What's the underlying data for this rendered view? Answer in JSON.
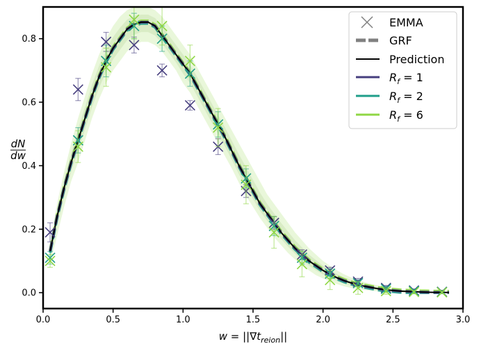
{
  "chart_data": {
    "type": "line",
    "xlabel_main": "w = ||",
    "xlabel_nabla": "∇",
    "xlabel_t": "t",
    "xlabel_sub": "reion",
    "xlabel_end": "||",
    "ylabel_num": "dN",
    "ylabel_den": "dw",
    "xlim": [
      0.0,
      3.0
    ],
    "ylim": [
      -0.05,
      0.9
    ],
    "xticks": [
      "0.0",
      "0.5",
      "1.0",
      "1.5",
      "2.0",
      "2.5",
      "3.0"
    ],
    "xtick_values": [
      0.0,
      0.5,
      1.0,
      1.5,
      2.0,
      2.5,
      3.0
    ],
    "yticks": [
      "0.0",
      "0.2",
      "0.4",
      "0.6",
      "0.8"
    ],
    "ytick_values": [
      0.0,
      0.2,
      0.4,
      0.6,
      0.8
    ],
    "legend": {
      "placement": "top-right",
      "entries": [
        {
          "label": "EMMA",
          "kind": "marker",
          "color": "#808080"
        },
        {
          "label": "GRF",
          "kind": "dashed",
          "color": "#808080"
        },
        {
          "label": "Prediction",
          "kind": "line",
          "color": "#000000"
        },
        {
          "label_base": "R",
          "label_sub": "f",
          "label_eq": " = 1",
          "kind": "line",
          "color": "#463e7e"
        },
        {
          "label_base": "R",
          "label_sub": "f",
          "label_eq": " = 2",
          "kind": "line",
          "color": "#1f9e89"
        },
        {
          "label_base": "R",
          "label_sub": "f",
          "label_eq": " = 6",
          "kind": "line",
          "color": "#8fd744"
        }
      ]
    },
    "prediction": {
      "color": "#000000",
      "x": [
        0.05,
        0.1,
        0.15,
        0.2,
        0.25,
        0.3,
        0.35,
        0.4,
        0.45,
        0.5,
        0.55,
        0.6,
        0.65,
        0.7,
        0.75,
        0.8,
        0.85,
        0.9,
        0.95,
        1.0,
        1.05,
        1.1,
        1.15,
        1.2,
        1.25,
        1.3,
        1.35,
        1.4,
        1.45,
        1.5,
        1.55,
        1.6,
        1.65,
        1.7,
        1.75,
        1.8,
        1.85,
        1.9,
        1.95,
        2.0,
        2.05,
        2.1,
        2.15,
        2.2,
        2.25,
        2.3,
        2.35,
        2.4,
        2.45,
        2.5,
        2.55,
        2.6,
        2.65,
        2.7,
        2.75,
        2.8,
        2.85,
        2.9
      ],
      "y": [
        0.13,
        0.24,
        0.33,
        0.41,
        0.48,
        0.55,
        0.62,
        0.68,
        0.73,
        0.77,
        0.8,
        0.83,
        0.845,
        0.852,
        0.852,
        0.84,
        0.81,
        0.78,
        0.75,
        0.72,
        0.69,
        0.65,
        0.61,
        0.57,
        0.53,
        0.49,
        0.445,
        0.4,
        0.36,
        0.32,
        0.28,
        0.25,
        0.22,
        0.19,
        0.165,
        0.14,
        0.12,
        0.1,
        0.085,
        0.07,
        0.058,
        0.047,
        0.038,
        0.031,
        0.025,
        0.02,
        0.016,
        0.012,
        0.009,
        0.007,
        0.005,
        0.004,
        0.003,
        0.002,
        0.0015,
        0.001,
        0.0008,
        0.0005
      ]
    },
    "grf_band": {
      "color": "#8fd744",
      "x": [
        0.05,
        0.1,
        0.15,
        0.2,
        0.25,
        0.3,
        0.35,
        0.4,
        0.45,
        0.5,
        0.55,
        0.6,
        0.65,
        0.7,
        0.75,
        0.8,
        0.85,
        0.9,
        0.95,
        1.0,
        1.05,
        1.1,
        1.15,
        1.2,
        1.25,
        1.3,
        1.35,
        1.4,
        1.45,
        1.5,
        1.55,
        1.6,
        1.65,
        1.7,
        1.75,
        1.8,
        1.85,
        1.9,
        1.95,
        2.0,
        2.05,
        2.1,
        2.15,
        2.2,
        2.25,
        2.3,
        2.35,
        2.4,
        2.45,
        2.5,
        2.55,
        2.6,
        2.65,
        2.7,
        2.75,
        2.8,
        2.85,
        2.9
      ],
      "upper": [
        0.16,
        0.28,
        0.38,
        0.47,
        0.55,
        0.62,
        0.69,
        0.75,
        0.8,
        0.84,
        0.87,
        0.89,
        0.9,
        0.9,
        0.9,
        0.89,
        0.87,
        0.84,
        0.81,
        0.78,
        0.75,
        0.71,
        0.67,
        0.63,
        0.59,
        0.55,
        0.51,
        0.47,
        0.43,
        0.39,
        0.35,
        0.31,
        0.28,
        0.25,
        0.22,
        0.19,
        0.165,
        0.14,
        0.12,
        0.1,
        0.085,
        0.07,
        0.058,
        0.048,
        0.04,
        0.033,
        0.027,
        0.022,
        0.018,
        0.014,
        0.011,
        0.009,
        0.007,
        0.005,
        0.004,
        0.003,
        0.002,
        0.0015
      ],
      "lower": [
        0.09,
        0.18,
        0.27,
        0.35,
        0.41,
        0.48,
        0.55,
        0.61,
        0.66,
        0.7,
        0.73,
        0.76,
        0.78,
        0.79,
        0.79,
        0.78,
        0.76,
        0.73,
        0.7,
        0.66,
        0.63,
        0.59,
        0.55,
        0.51,
        0.47,
        0.43,
        0.39,
        0.345,
        0.305,
        0.27,
        0.235,
        0.205,
        0.175,
        0.15,
        0.125,
        0.105,
        0.085,
        0.07,
        0.055,
        0.045,
        0.035,
        0.027,
        0.02,
        0.015,
        0.011,
        0.008,
        0.006,
        0.004,
        0.003,
        0.002,
        0.0015,
        0.001,
        0.0008,
        0.0005,
        0.0003,
        0.0002,
        0.0001,
        0.0
      ]
    },
    "series": [
      {
        "label": "R_f = 1",
        "color": "#463e7e",
        "x": [
          0.05,
          0.25,
          0.45,
          0.65,
          0.85,
          1.05,
          1.25,
          1.45,
          1.65,
          1.85,
          2.05,
          2.25,
          2.45,
          2.65,
          2.85
        ],
        "y": [
          0.19,
          0.64,
          0.79,
          0.78,
          0.7,
          0.59,
          0.46,
          0.32,
          0.22,
          0.12,
          0.07,
          0.035,
          0.015,
          0.007,
          0.003
        ],
        "err": [
          0.03,
          0.035,
          0.03,
          0.025,
          0.02,
          0.015,
          0.025,
          0.02,
          0.02,
          0.015,
          0.01,
          0.01,
          0.008,
          0.005,
          0.004
        ]
      },
      {
        "label": "R_f = 2",
        "color": "#1f9e89",
        "x": [
          0.05,
          0.25,
          0.45,
          0.65,
          0.85,
          1.05,
          1.25,
          1.45,
          1.65,
          1.85,
          2.05,
          2.25,
          2.45,
          2.65,
          2.85
        ],
        "y": [
          0.11,
          0.48,
          0.73,
          0.84,
          0.8,
          0.69,
          0.53,
          0.36,
          0.21,
          0.11,
          0.06,
          0.03,
          0.012,
          0.005,
          0.002
        ],
        "err": [
          0.02,
          0.04,
          0.05,
          0.04,
          0.04,
          0.04,
          0.04,
          0.03,
          0.03,
          0.02,
          0.015,
          0.01,
          0.008,
          0.005,
          0.003
        ]
      },
      {
        "label": "R_f = 6",
        "color": "#8fd744",
        "x": [
          0.05,
          0.25,
          0.45,
          0.65,
          0.85,
          1.05,
          1.25,
          1.45,
          1.65,
          1.85,
          2.05,
          2.25,
          2.45,
          2.65,
          2.85
        ],
        "y": [
          0.1,
          0.46,
          0.71,
          0.86,
          0.84,
          0.73,
          0.52,
          0.34,
          0.19,
          0.09,
          0.04,
          0.015,
          0.005,
          0.002,
          0.001
        ],
        "err": [
          0.02,
          0.05,
          0.06,
          0.06,
          0.06,
          0.05,
          0.06,
          0.06,
          0.05,
          0.04,
          0.03,
          0.02,
          0.01,
          0.005,
          0.003
        ]
      }
    ]
  }
}
